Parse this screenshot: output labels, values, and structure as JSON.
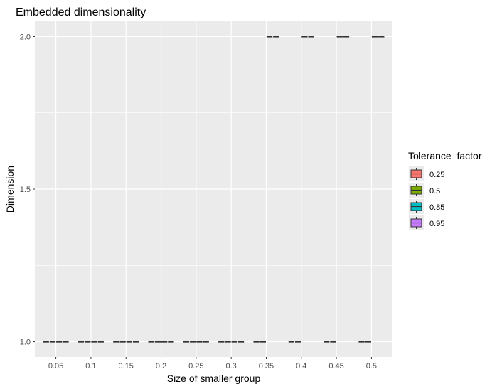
{
  "chart_data": {
    "type": "boxplot",
    "title": "Embedded dimensionality",
    "xlabel": "Size of smaller group",
    "ylabel": "Dimension",
    "categories": [
      "0.05",
      "0.1",
      "0.15",
      "0.2",
      "0.25",
      "0.3",
      "0.35",
      "0.4",
      "0.45",
      "0.5"
    ],
    "y_ticks": [
      "1.0",
      "1.5",
      "2.0"
    ],
    "ylim": [
      0.95,
      2.05
    ],
    "grid": true,
    "legend_position": "right",
    "legend": {
      "title": "Tolerance_factor",
      "entries": [
        {
          "label": "0.25",
          "color": "#F8766D"
        },
        {
          "label": "0.5",
          "color": "#7CAE00"
        },
        {
          "label": "0.85",
          "color": "#00BFC4"
        },
        {
          "label": "0.95",
          "color": "#C77CFF"
        }
      ]
    },
    "series": [
      {
        "name": "0.25",
        "color": "#F8766D",
        "values": [
          1,
          1,
          1,
          1,
          1,
          1,
          1,
          1,
          1,
          1
        ]
      },
      {
        "name": "0.5",
        "color": "#7CAE00",
        "values": [
          1,
          1,
          1,
          1,
          1,
          1,
          1,
          1,
          1,
          1
        ]
      },
      {
        "name": "0.85",
        "color": "#00BFC4",
        "values": [
          1,
          1,
          1,
          1,
          1,
          1,
          2,
          2,
          2,
          2
        ]
      },
      {
        "name": "0.95",
        "color": "#C77CFF",
        "values": [
          1,
          1,
          1,
          1,
          1,
          1,
          2,
          2,
          2,
          2
        ]
      }
    ],
    "median_line_color": "#333333",
    "panel_background": "#EBEBEB",
    "grid_color": "#FFFFFF"
  }
}
